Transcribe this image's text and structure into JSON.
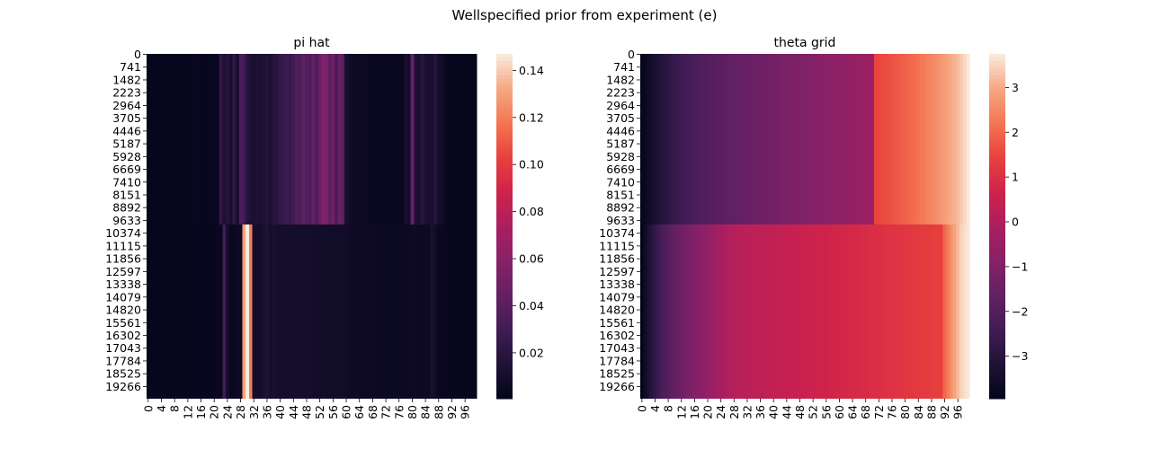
{
  "suptitle": "Wellspecified prior from experiment (e)",
  "chart_data": [
    {
      "type": "heatmap",
      "title": "pi hat",
      "ytick_labels": [
        "0",
        "741",
        "1482",
        "2223",
        "2964",
        "3705",
        "4446",
        "5187",
        "5928",
        "6669",
        "7410",
        "8151",
        "8892",
        "9633",
        "10374",
        "11115",
        "11856",
        "12597",
        "13338",
        "14079",
        "14820",
        "15561",
        "16302",
        "17043",
        "17784",
        "18525",
        "19266"
      ],
      "xtick_labels": [
        "0",
        "4",
        "8",
        "12",
        "16",
        "20",
        "24",
        "28",
        "32",
        "36",
        "40",
        "44",
        "48",
        "52",
        "56",
        "60",
        "64",
        "68",
        "72",
        "76",
        "80",
        "84",
        "88",
        "92",
        "96"
      ],
      "n_columns": 100,
      "n_rows": 20000,
      "row_switch": 9900,
      "colorbar": {
        "ticks": [
          "0.02",
          "0.04",
          "0.06",
          "0.08",
          "0.10",
          "0.12",
          "0.14"
        ],
        "tick_values": [
          0.02,
          0.04,
          0.06,
          0.08,
          0.1,
          0.12,
          0.14
        ],
        "vmin": 0.0005,
        "vmax": 0.147
      },
      "colormap": "rocket",
      "column_values_top": [
        0.002,
        0.002,
        0.002,
        0.002,
        0.002,
        0.002,
        0.002,
        0.002,
        0.002,
        0.002,
        0.002,
        0.002,
        0.002,
        0.002,
        0.004,
        0.003,
        0.003,
        0.003,
        0.003,
        0.003,
        0.004,
        0.004,
        0.022,
        0.014,
        0.018,
        0.012,
        0.022,
        0.012,
        0.034,
        0.03,
        0.018,
        0.014,
        0.012,
        0.014,
        0.012,
        0.014,
        0.016,
        0.012,
        0.018,
        0.02,
        0.024,
        0.026,
        0.028,
        0.024,
        0.03,
        0.036,
        0.034,
        0.042,
        0.038,
        0.034,
        0.044,
        0.036,
        0.046,
        0.058,
        0.054,
        0.042,
        0.05,
        0.034,
        0.048,
        0.04,
        0.012,
        0.008,
        0.006,
        0.006,
        0.005,
        0.005,
        0.006,
        0.004,
        0.004,
        0.004,
        0.004,
        0.004,
        0.004,
        0.004,
        0.004,
        0.004,
        0.004,
        0.004,
        0.012,
        0.008,
        0.044,
        0.014,
        0.012,
        0.018,
        0.014,
        0.012,
        0.012,
        0.018,
        0.01,
        0.008,
        0.004,
        0.002,
        0.002,
        0.002,
        0.002,
        0.002,
        0.002,
        0.002,
        0.002,
        0.002
      ],
      "column_values_bottom": [
        0.002,
        0.002,
        0.002,
        0.002,
        0.002,
        0.002,
        0.002,
        0.002,
        0.002,
        0.002,
        0.002,
        0.002,
        0.002,
        0.002,
        0.003,
        0.003,
        0.003,
        0.003,
        0.003,
        0.003,
        0.003,
        0.004,
        0.004,
        0.03,
        0.01,
        0.004,
        0.004,
        0.006,
        0.005,
        0.13,
        0.147,
        0.12,
        0.01,
        0.01,
        0.01,
        0.012,
        0.014,
        0.01,
        0.012,
        0.01,
        0.01,
        0.01,
        0.01,
        0.01,
        0.01,
        0.01,
        0.01,
        0.01,
        0.01,
        0.01,
        0.009,
        0.009,
        0.009,
        0.009,
        0.008,
        0.008,
        0.008,
        0.008,
        0.008,
        0.008,
        0.008,
        0.007,
        0.007,
        0.007,
        0.007,
        0.006,
        0.006,
        0.006,
        0.006,
        0.006,
        0.005,
        0.005,
        0.005,
        0.005,
        0.005,
        0.005,
        0.005,
        0.005,
        0.005,
        0.005,
        0.006,
        0.006,
        0.005,
        0.005,
        0.006,
        0.006,
        0.012,
        0.008,
        0.004,
        0.004,
        0.003,
        0.003,
        0.002,
        0.002,
        0.002,
        0.002,
        0.002,
        0.002,
        0.002,
        0.002
      ]
    },
    {
      "type": "heatmap",
      "title": "theta grid",
      "ytick_labels": [
        "0",
        "741",
        "1482",
        "2223",
        "2964",
        "3705",
        "4446",
        "5187",
        "5928",
        "6669",
        "7410",
        "8151",
        "8892",
        "9633",
        "10374",
        "11115",
        "11856",
        "12597",
        "13338",
        "14079",
        "14820",
        "15561",
        "16302",
        "17043",
        "17784",
        "18525",
        "19266"
      ],
      "xtick_labels": [
        "0",
        "4",
        "8",
        "12",
        "16",
        "20",
        "24",
        "28",
        "32",
        "36",
        "40",
        "44",
        "48",
        "52",
        "56",
        "60",
        "64",
        "68",
        "72",
        "76",
        "80",
        "84",
        "88",
        "92",
        "96"
      ],
      "n_columns": 100,
      "n_rows": 20000,
      "row_switch": 9900,
      "colorbar": {
        "ticks": [
          "−3",
          "−2",
          "−1",
          "0",
          "1",
          "2",
          "3"
        ],
        "tick_values": [
          -3,
          -2,
          -1,
          0,
          1,
          2,
          3
        ],
        "vmin": -3.95,
        "vmax": 3.75
      },
      "colormap": "rocket",
      "column_values_top": [
        -3.9,
        -3.75,
        -3.6,
        -3.45,
        -3.3,
        -3.18,
        -3.06,
        -2.95,
        -2.85,
        -2.75,
        -2.66,
        -2.57,
        -2.49,
        -2.41,
        -2.34,
        -2.27,
        -2.21,
        -2.15,
        -2.1,
        -2.05,
        -2.0,
        -1.96,
        -1.92,
        -1.88,
        -1.84,
        -1.8,
        -1.76,
        -1.72,
        -1.68,
        -1.64,
        -1.6,
        -1.57,
        -1.54,
        -1.51,
        -1.48,
        -1.45,
        -1.42,
        -1.39,
        -1.36,
        -1.33,
        -1.3,
        -1.27,
        -1.24,
        -1.21,
        -1.18,
        -1.15,
        -1.12,
        -1.09,
        -1.06,
        -1.03,
        -1.0,
        -0.97,
        -0.94,
        -0.91,
        -0.88,
        -0.85,
        -0.82,
        -0.79,
        -0.76,
        -0.73,
        -0.7,
        -0.67,
        -0.64,
        -0.61,
        -0.58,
        -0.55,
        -0.52,
        -0.49,
        -0.46,
        -0.43,
        -0.4,
        1.45,
        1.5,
        1.55,
        1.6,
        1.65,
        1.7,
        1.75,
        1.8,
        1.86,
        1.92,
        1.98,
        2.04,
        2.1,
        2.17,
        2.24,
        2.31,
        2.38,
        2.46,
        2.54,
        2.62,
        2.7,
        2.8,
        2.9,
        3.0,
        3.1,
        3.22,
        3.36,
        3.52,
        3.7
      ],
      "column_values_bottom": [
        -3.95,
        -3.6,
        -3.3,
        -3.0,
        -2.75,
        -2.5,
        -2.3,
        -2.1,
        -1.95,
        -1.8,
        -1.65,
        -1.52,
        -1.4,
        -1.3,
        -1.2,
        -1.1,
        -1.0,
        -0.9,
        -0.8,
        -0.7,
        -0.6,
        -0.5,
        -0.4,
        -0.3,
        -0.2,
        -0.1,
        0.0,
        0.05,
        0.1,
        0.15,
        0.2,
        0.22,
        0.25,
        0.26,
        0.27,
        0.28,
        0.29,
        0.3,
        0.32,
        0.34,
        0.36,
        0.38,
        0.4,
        0.42,
        0.44,
        0.46,
        0.48,
        0.5,
        0.52,
        0.54,
        0.56,
        0.58,
        0.6,
        0.62,
        0.64,
        0.66,
        0.68,
        0.7,
        0.72,
        0.74,
        0.76,
        0.78,
        0.8,
        0.82,
        0.84,
        0.86,
        0.88,
        0.9,
        0.92,
        0.94,
        0.96,
        0.98,
        1.0,
        1.02,
        1.04,
        1.06,
        1.08,
        1.1,
        1.12,
        1.14,
        1.16,
        1.18,
        1.2,
        1.22,
        1.24,
        1.26,
        1.28,
        1.3,
        1.32,
        1.34,
        1.36,
        1.38,
        2.0,
        2.3,
        2.6,
        2.9,
        3.2,
        3.45,
        3.6,
        3.7
      ]
    }
  ]
}
